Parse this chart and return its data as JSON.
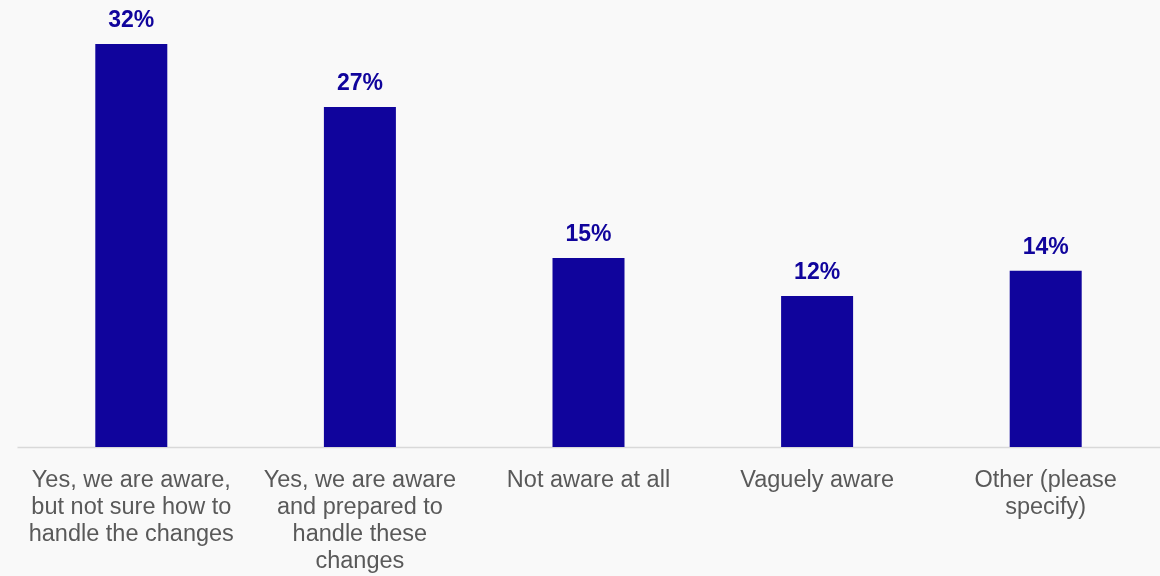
{
  "chart_data": {
    "type": "bar",
    "categories": [
      "Yes, we are aware, but not sure how to handle the changes",
      "Yes, we are aware and prepared to handle these changes",
      "Not aware at all",
      "Vaguely aware",
      "Other (please specify)"
    ],
    "values": [
      32,
      27,
      15,
      12,
      14
    ],
    "value_labels": [
      "32%",
      "27%",
      "15%",
      "12%",
      "14%"
    ],
    "color": "#10049c",
    "tick_labels": "x"
  }
}
